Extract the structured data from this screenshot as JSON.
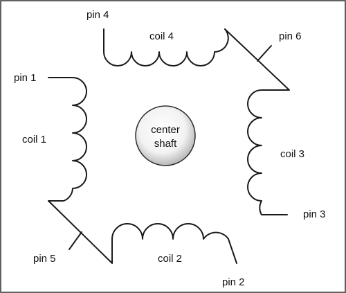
{
  "diagram": {
    "pins": {
      "pin1": "pin 1",
      "pin2": "pin 2",
      "pin3": "pin 3",
      "pin4": "pin 4",
      "pin5": "pin 5",
      "pin6": "pin 6"
    },
    "coils": {
      "coil1": "coil 1",
      "coil2": "coil 2",
      "coil3": "coil 3",
      "coil4": "coil 4"
    },
    "shaft": {
      "line1": "center",
      "line2": "shaft"
    },
    "colors": {
      "stroke": "#1a1a1a",
      "shaft_fill_center": "#ffffff",
      "shaft_fill_edge": "#b8b8b8"
    }
  }
}
